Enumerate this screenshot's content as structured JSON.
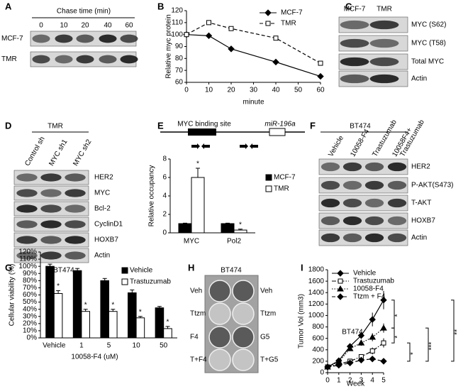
{
  "panels": {
    "labels": [
      "A",
      "B",
      "C",
      "D",
      "E",
      "F",
      "G",
      "H",
      "I"
    ]
  },
  "blots": {
    "A": {
      "header": "Chase time (min)",
      "lanes": [
        "0",
        "10",
        "20",
        "40",
        "60"
      ],
      "rows": [
        "MCF-7",
        "TMR"
      ]
    },
    "C": {
      "lanes": [
        "MCF-7",
        "TMR"
      ],
      "rows": [
        "MYC (S62)",
        "MYC (T58)",
        "Total MYC",
        "Actin"
      ]
    },
    "D": {
      "header": "TMR",
      "lanes": [
        "Control sh",
        "MYC sh1",
        "MYC sh2"
      ],
      "rows": [
        "HER2",
        "MYC",
        "Bcl-2",
        "CyclinD1",
        "HOXB7",
        "Actin"
      ]
    },
    "F": {
      "header": "BT474",
      "lanes": [
        "Vehicle",
        "10058-F4",
        "Trastuzumab",
        [
          "10058F4+",
          "Trastuzumab"
        ]
      ],
      "rows": [
        "HER2",
        "P-AKT(S473)",
        "T-AKT",
        "HOXB7",
        "Actin"
      ]
    },
    "H": {
      "header": "BT474",
      "left": [
        "Veh",
        "Ttzm",
        "F4",
        "T+F4"
      ],
      "right": [
        "Veh",
        "Ttzm",
        "G5",
        "T+G5"
      ]
    }
  },
  "diagram_E": {
    "site": "MYC binding site",
    "gene": "miR-196a"
  },
  "chart_data": [
    {
      "type": "line",
      "x": [
        0,
        10,
        20,
        40,
        60
      ],
      "xlim": [
        0,
        60
      ],
      "xticks": [
        0,
        10,
        20,
        30,
        40,
        50,
        60
      ],
      "ylim": [
        60,
        120
      ],
      "yticks": [
        60,
        70,
        80,
        90,
        100,
        110,
        120
      ],
      "xlabel": "minute",
      "ylabel": "Relative myc protein",
      "series": [
        {
          "name": "MCF-7",
          "color": "#000000",
          "marker": "diamond",
          "dash": "solid",
          "values": [
            100,
            99,
            88,
            77,
            65
          ]
        },
        {
          "name": "TMR",
          "color": "#000000",
          "marker": "square-open",
          "dash": "dashed",
          "values": [
            100,
            110,
            105,
            97,
            76
          ]
        }
      ]
    },
    {
      "type": "bar",
      "categories": [
        "MYC",
        "Pol2"
      ],
      "ylim": [
        0,
        8
      ],
      "yticks": [
        0,
        2,
        4,
        6,
        8
      ],
      "ylabel": "Relative occupancy",
      "series": [
        {
          "name": "MCF-7",
          "color": "#000000",
          "values": [
            1,
            1
          ],
          "errors": [
            0.05,
            0.05
          ],
          "annotations": [
            null,
            null
          ]
        },
        {
          "name": "TMR",
          "color": "#ffffff",
          "values": [
            6,
            0.3
          ],
          "errors": [
            1,
            0.1
          ],
          "annotations": [
            "*",
            "*"
          ]
        }
      ]
    },
    {
      "type": "bar",
      "title": "BT474",
      "categories": [
        "Vehicle",
        "1",
        "5",
        "10",
        "50"
      ],
      "ylim": [
        0,
        120
      ],
      "yticks": [
        {
          "value": 0,
          "label": "0%"
        },
        {
          "value": 10,
          "label": "10%"
        },
        {
          "value": 20,
          "label": "20%"
        },
        {
          "value": 30,
          "label": "30%"
        },
        {
          "value": 40,
          "label": "40%"
        },
        {
          "value": 50,
          "label": "50%"
        },
        {
          "value": 60,
          "label": "60%"
        },
        {
          "value": 70,
          "label": "70%"
        },
        {
          "value": 80,
          "label": "80%"
        },
        {
          "value": 90,
          "label": "90%"
        },
        {
          "value": 100,
          "label": "100%"
        },
        {
          "value": 110,
          "label": "110%"
        },
        {
          "value": 120,
          "label": "120%"
        }
      ],
      "xlabel": "10058-F4 (uM)",
      "ylabel": "Cellular viability (%)",
      "series": [
        {
          "name": "Vehicle",
          "color": "#000000",
          "values": [
            100,
            94,
            80,
            63,
            42
          ],
          "errors": [
            3,
            3,
            3,
            4,
            2
          ],
          "annotations": [
            null,
            null,
            null,
            null,
            null
          ]
        },
        {
          "name": "Trastuzumab",
          "color": "#ffffff",
          "values": [
            62,
            37,
            37,
            28,
            13
          ],
          "errors": [
            4,
            3,
            3,
            2,
            3
          ],
          "annotations": [
            "*",
            "*",
            "*",
            "*",
            "*"
          ]
        }
      ]
    },
    {
      "type": "line",
      "annotation": "BT474",
      "x": [
        0,
        1,
        2,
        3,
        4,
        5
      ],
      "xlim": [
        0,
        5
      ],
      "xticks": [
        0,
        1,
        2,
        3,
        4,
        5
      ],
      "ylim": [
        0,
        1800
      ],
      "yticks": [
        0,
        200,
        400,
        600,
        800,
        1000,
        1200,
        1400,
        1600,
        1800
      ],
      "xlabel": "Week",
      "ylabel": "Tumor Vol (mm3)",
      "significance": [
        "*",
        "*",
        "**",
        "*",
        "***"
      ],
      "series": [
        {
          "name": "Vehicle",
          "color": "#000000",
          "marker": "diamond",
          "dash": "solid",
          "values": [
            100,
            210,
            460,
            650,
            930,
            1270
          ],
          "errors": [
            10,
            30,
            40,
            60,
            120,
            160
          ]
        },
        {
          "name": "Trastuzumab",
          "color": "#000000",
          "marker": "square-open",
          "dash": "dashdot",
          "values": [
            100,
            150,
            200,
            280,
            380,
            520
          ],
          "errors": [
            10,
            20,
            30,
            40,
            60,
            80
          ]
        },
        {
          "name": "10058-F4",
          "color": "#000000",
          "marker": "triangle",
          "dash": "dotted",
          "values": [
            100,
            190,
            420,
            520,
            620,
            780
          ],
          "errors": [
            10,
            30,
            40,
            50,
            70,
            80
          ]
        },
        {
          "name": "Ttzm + F4",
          "color": "#000000",
          "marker": "diamond",
          "dash": "dashed",
          "values": [
            100,
            130,
            170,
            220,
            240,
            200
          ],
          "errors": [
            10,
            20,
            20,
            30,
            40,
            30
          ]
        }
      ]
    }
  ]
}
